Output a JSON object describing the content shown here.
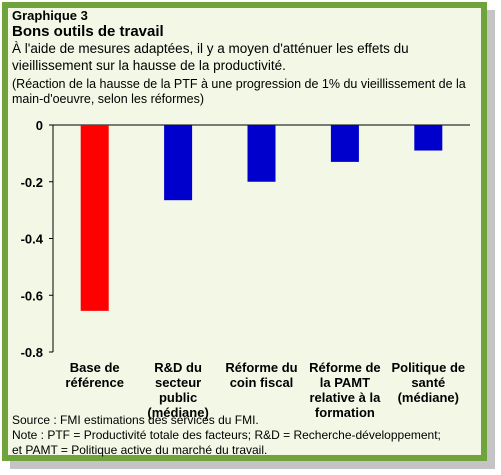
{
  "header": {
    "label": "Graphique 3",
    "title": "Bons outils de travail",
    "subtitle": "À l'aide de mesures adaptées, il y a moyen d'atténuer les effets du vieillissement sur la hausse de la productivité.",
    "note": "(Réaction de la hausse de la PTF à une progression de 1% du vieillissement de la main-d'oeuvre, selon les réformes)"
  },
  "chart_data": {
    "type": "bar",
    "categories": [
      [
        "Base de",
        "référence"
      ],
      [
        "R&D du",
        "secteur",
        "public",
        "(médiane)"
      ],
      [
        "Réforme du",
        "coin fiscal"
      ],
      [
        "Réforme de",
        "la PAMT",
        "relative à la",
        "formation"
      ],
      [
        "Politique de",
        "santé",
        "(médiane)"
      ]
    ],
    "values": [
      -0.655,
      -0.265,
      -0.2,
      -0.13,
      -0.09
    ],
    "colors": [
      "#ff0000",
      "#0000cc",
      "#0000cc",
      "#0000cc",
      "#0000cc"
    ],
    "ylim": [
      -0.8,
      0
    ],
    "yticks": [
      "0",
      "-0.2",
      "-0.4",
      "-0.6",
      "-0.8"
    ],
    "grid": false
  },
  "footer": {
    "source": "Source : FMI estimations des services du FMI.",
    "note_line1": "Note : PTF = Productivité totale des facteurs; R&D = Recherche-développement;",
    "note_line2": "et PAMT = Politique active du marché du travail."
  }
}
